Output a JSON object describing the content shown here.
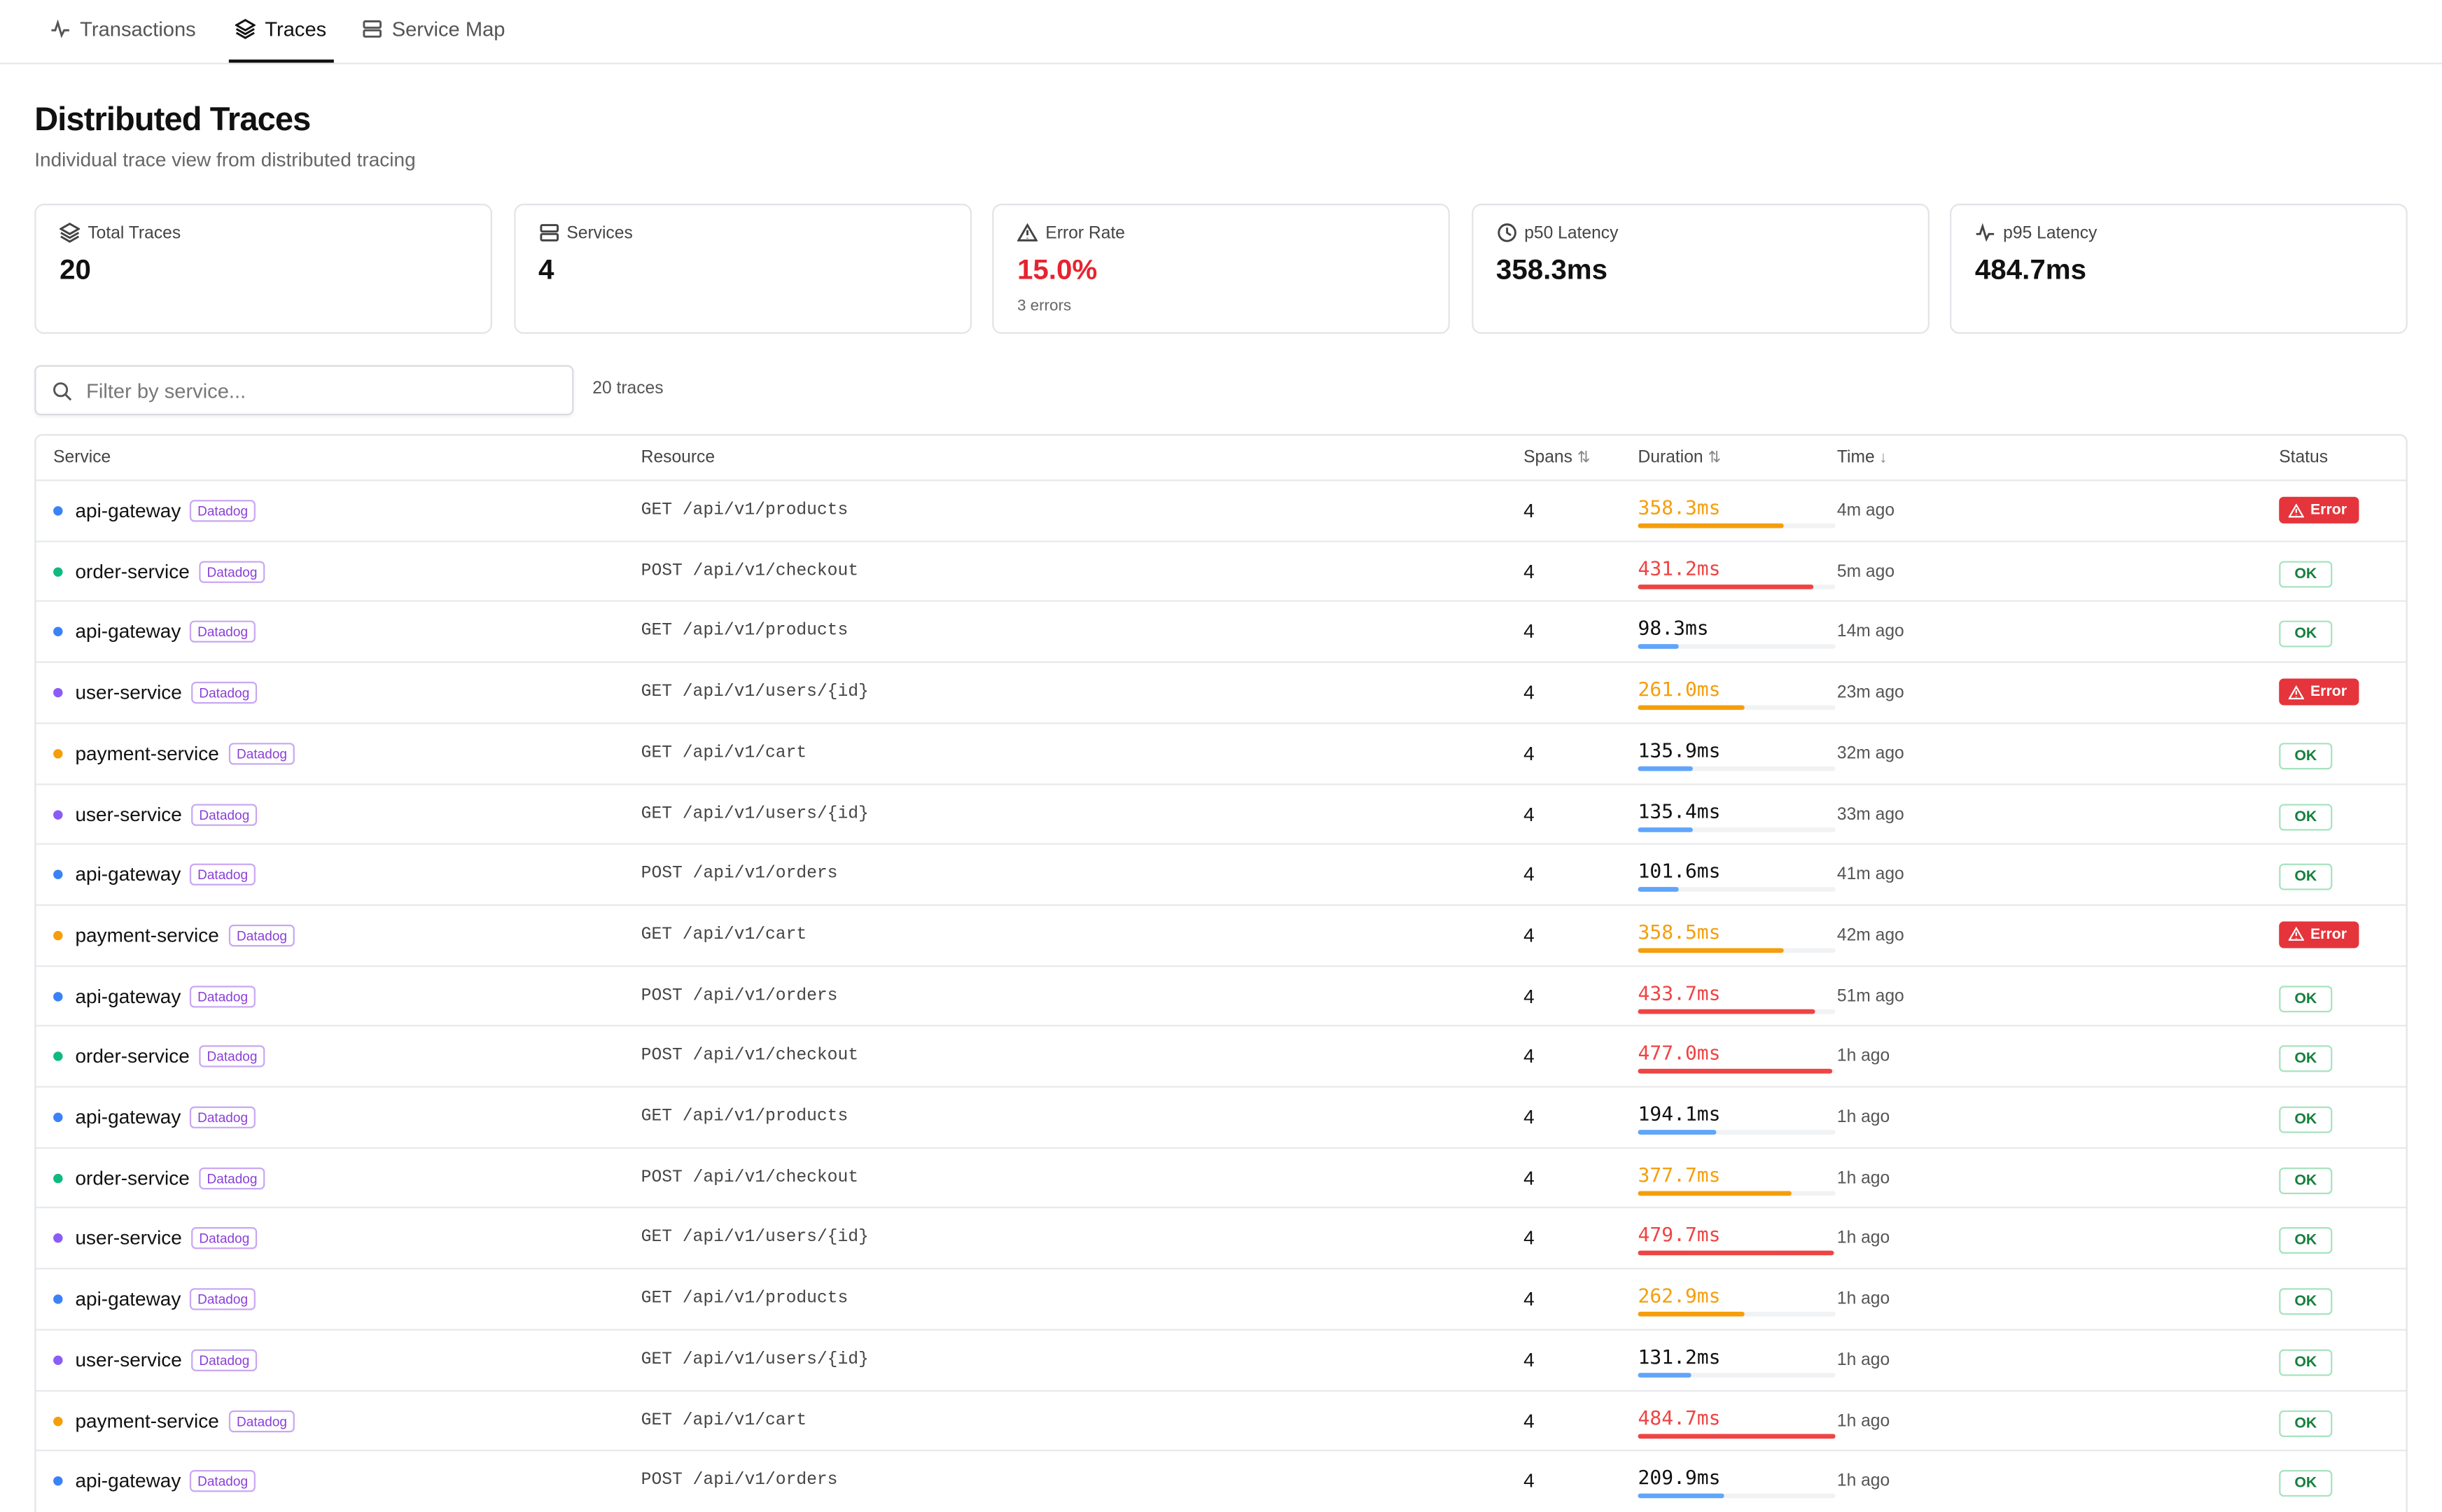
{
  "tabs": [
    "Transactions",
    "Traces",
    "Service Map"
  ],
  "header": {
    "title": "Distributed Traces",
    "subtitle": "Individual trace view from distributed tracing"
  },
  "stats": [
    {
      "label": "Total Traces",
      "value": "20"
    },
    {
      "label": "Services",
      "value": "4"
    },
    {
      "label": "Error Rate",
      "value": "15.0%",
      "sub": "3 errors",
      "color": "#e5242f"
    },
    {
      "label": "p50 Latency",
      "value": "358.3ms"
    },
    {
      "label": "p95 Latency",
      "value": "484.7ms"
    }
  ],
  "filter": {
    "placeholder": "Filter by service...",
    "count": "20 traces"
  },
  "table": {
    "columns": [
      "Service",
      "Resource",
      "Spans",
      "Duration",
      "Time",
      "Status"
    ],
    "rows": [
      {
        "service": "api-gateway",
        "dot_color": "#3b82f6",
        "source": "Datadog",
        "resource": "GET /api/v1/products",
        "spans": "4",
        "duration": 358.3,
        "duration_label": "358.3ms",
        "duration_color": "#f59e0b",
        "time": "4m ago",
        "status": "Error"
      },
      {
        "service": "order-service",
        "dot_color": "#10b981",
        "source": "Datadog",
        "resource": "POST /api/v1/checkout",
        "spans": "4",
        "duration": 431.2,
        "duration_label": "431.2ms",
        "duration_color": "#ef4444",
        "time": "5m ago",
        "status": "OK"
      },
      {
        "service": "api-gateway",
        "dot_color": "#3b82f6",
        "source": "Datadog",
        "resource": "GET /api/v1/products",
        "spans": "4",
        "duration": 98.3,
        "duration_label": "98.3ms",
        "duration_color": "#60a5fa",
        "time": "14m ago",
        "status": "OK"
      },
      {
        "service": "user-service",
        "dot_color": "#8b5cf6",
        "source": "Datadog",
        "resource": "GET /api/v1/users/{id}",
        "spans": "4",
        "duration": 261.0,
        "duration_label": "261.0ms",
        "duration_color": "#f59e0b",
        "time": "23m ago",
        "status": "Error"
      },
      {
        "service": "payment-service",
        "dot_color": "#f59e0b",
        "source": "Datadog",
        "resource": "GET /api/v1/cart",
        "spans": "4",
        "duration": 135.9,
        "duration_label": "135.9ms",
        "duration_color": "#60a5fa",
        "time": "32m ago",
        "status": "OK"
      },
      {
        "service": "user-service",
        "dot_color": "#8b5cf6",
        "source": "Datadog",
        "resource": "GET /api/v1/users/{id}",
        "spans": "4",
        "duration": 135.4,
        "duration_label": "135.4ms",
        "duration_color": "#60a5fa",
        "time": "33m ago",
        "status": "OK"
      },
      {
        "service": "api-gateway",
        "dot_color": "#3b82f6",
        "source": "Datadog",
        "resource": "POST /api/v1/orders",
        "spans": "4",
        "duration": 101.6,
        "duration_label": "101.6ms",
        "duration_color": "#60a5fa",
        "time": "41m ago",
        "status": "OK"
      },
      {
        "service": "payment-service",
        "dot_color": "#f59e0b",
        "source": "Datadog",
        "resource": "GET /api/v1/cart",
        "spans": "4",
        "duration": 358.5,
        "duration_label": "358.5ms",
        "duration_color": "#f59e0b",
        "time": "42m ago",
        "status": "Error"
      },
      {
        "service": "api-gateway",
        "dot_color": "#3b82f6",
        "source": "Datadog",
        "resource": "POST /api/v1/orders",
        "spans": "4",
        "duration": 433.7,
        "duration_label": "433.7ms",
        "duration_color": "#ef4444",
        "time": "51m ago",
        "status": "OK"
      },
      {
        "service": "order-service",
        "dot_color": "#10b981",
        "source": "Datadog",
        "resource": "POST /api/v1/checkout",
        "spans": "4",
        "duration": 477.0,
        "duration_label": "477.0ms",
        "duration_color": "#ef4444",
        "time": "1h ago",
        "status": "OK"
      },
      {
        "service": "api-gateway",
        "dot_color": "#3b82f6",
        "source": "Datadog",
        "resource": "GET /api/v1/products",
        "spans": "4",
        "duration": 194.1,
        "duration_label": "194.1ms",
        "duration_color": "#60a5fa",
        "time": "1h ago",
        "status": "OK"
      },
      {
        "service": "order-service",
        "dot_color": "#10b981",
        "source": "Datadog",
        "resource": "POST /api/v1/checkout",
        "spans": "4",
        "duration": 377.7,
        "duration_label": "377.7ms",
        "duration_color": "#f59e0b",
        "time": "1h ago",
        "status": "OK"
      },
      {
        "service": "user-service",
        "dot_color": "#8b5cf6",
        "source": "Datadog",
        "resource": "GET /api/v1/users/{id}",
        "spans": "4",
        "duration": 479.7,
        "duration_label": "479.7ms",
        "duration_color": "#ef4444",
        "time": "1h ago",
        "status": "OK"
      },
      {
        "service": "api-gateway",
        "dot_color": "#3b82f6",
        "source": "Datadog",
        "resource": "GET /api/v1/products",
        "spans": "4",
        "duration": 262.9,
        "duration_label": "262.9ms",
        "duration_color": "#f59e0b",
        "time": "1h ago",
        "status": "OK"
      },
      {
        "service": "user-service",
        "dot_color": "#8b5cf6",
        "source": "Datadog",
        "resource": "GET /api/v1/users/{id}",
        "spans": "4",
        "duration": 131.2,
        "duration_label": "131.2ms",
        "duration_color": "#60a5fa",
        "time": "1h ago",
        "status": "OK"
      },
      {
        "service": "payment-service",
        "dot_color": "#f59e0b",
        "source": "Datadog",
        "resource": "GET /api/v1/cart",
        "spans": "4",
        "duration": 484.7,
        "duration_label": "484.7ms",
        "duration_color": "#ef4444",
        "time": "1h ago",
        "status": "OK"
      },
      {
        "service": "api-gateway",
        "dot_color": "#3b82f6",
        "source": "Datadog",
        "resource": "POST /api/v1/orders",
        "spans": "4",
        "duration": 209.9,
        "duration_label": "209.9ms",
        "duration_color": "#60a5fa",
        "time": "1h ago",
        "status": "OK"
      }
    ]
  }
}
